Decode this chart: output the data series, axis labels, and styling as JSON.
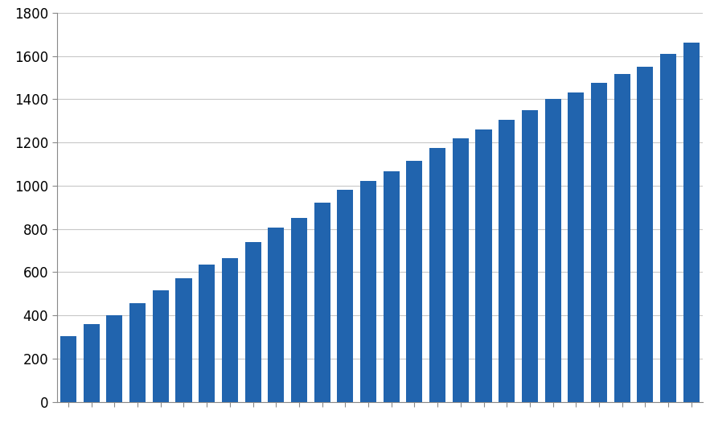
{
  "values": [
    305,
    360,
    400,
    455,
    515,
    570,
    635,
    665,
    740,
    805,
    850,
    920,
    980,
    1020,
    1065,
    1115,
    1175,
    1220,
    1260,
    1305,
    1350,
    1400,
    1430,
    1475,
    1515,
    1550,
    1610,
    1660
  ],
  "bar_color": "#2164ae",
  "ylim": [
    0,
    1800
  ],
  "yticks": [
    0,
    200,
    400,
    600,
    800,
    1000,
    1200,
    1400,
    1600,
    1800
  ],
  "background_color": "#ffffff",
  "grid_color": "#c8c8c8",
  "figsize": [
    8.83,
    5.26
  ],
  "dpi": 100,
  "bar_width": 0.7,
  "tick_label_fontsize": 12,
  "tick_color": "#888888",
  "spine_color": "#888888"
}
